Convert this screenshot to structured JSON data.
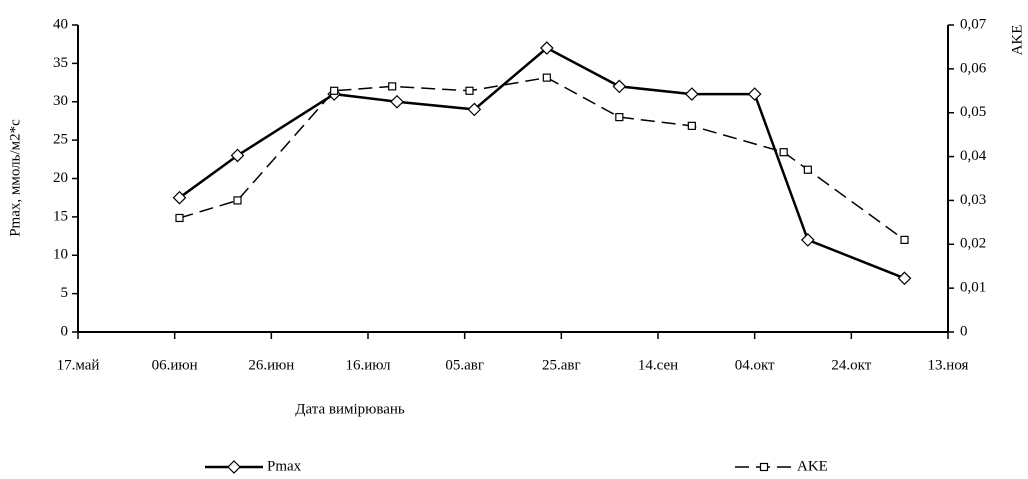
{
  "chart_data": {
    "type": "line",
    "x_label": "Дата вимірювань",
    "y_label": "Pmax, ммоль/м2*с",
    "y2_label": "AKE",
    "xlim": [
      0,
      180
    ],
    "xticks": [
      {
        "value": 0,
        "label": "17.май"
      },
      {
        "value": 20,
        "label": "06.июн"
      },
      {
        "value": 40,
        "label": "26.июн"
      },
      {
        "value": 60,
        "label": "16.июл"
      },
      {
        "value": 80,
        "label": "05.авг"
      },
      {
        "value": 100,
        "label": "25.авг"
      },
      {
        "value": 120,
        "label": "14.сен"
      },
      {
        "value": 140,
        "label": "04.окт"
      },
      {
        "value": 160,
        "label": "24.окт"
      },
      {
        "value": 180,
        "label": "13.ноя"
      }
    ],
    "ylim": [
      0,
      40
    ],
    "yticks": [
      0,
      5,
      10,
      15,
      20,
      25,
      30,
      35,
      40
    ],
    "y2lim": [
      0,
      0.07
    ],
    "y2ticks": [
      0,
      {
        "value": 0.01,
        "label": "0,01"
      },
      {
        "value": 0.02,
        "label": "0,02"
      },
      {
        "value": 0.03,
        "label": "0,03"
      },
      {
        "value": 0.04,
        "label": "0,04"
      },
      {
        "value": 0.05,
        "label": "0,05"
      },
      {
        "value": 0.06,
        "label": "0,06"
      },
      {
        "value": 0.07,
        "label": "0,07"
      }
    ],
    "series": [
      {
        "name": "Pmax",
        "color": "#000000",
        "marker": "diamond",
        "dash": false,
        "x": [
          21,
          33,
          53,
          66,
          82,
          97,
          112,
          127,
          140,
          151,
          171
        ],
        "values": [
          17.5,
          23,
          31,
          30,
          29,
          37,
          32,
          31,
          31,
          12,
          7
        ]
      },
      {
        "name": "AKE",
        "color": "#000000",
        "marker": "square",
        "dash": true,
        "axis": "y2",
        "x": [
          21,
          33,
          53,
          65,
          81,
          97,
          112,
          127,
          146,
          151,
          171
        ],
        "values": [
          0.026,
          0.03,
          0.055,
          0.056,
          0.055,
          0.058,
          0.049,
          0.047,
          0.041,
          0.037,
          0.021
        ]
      }
    ]
  }
}
